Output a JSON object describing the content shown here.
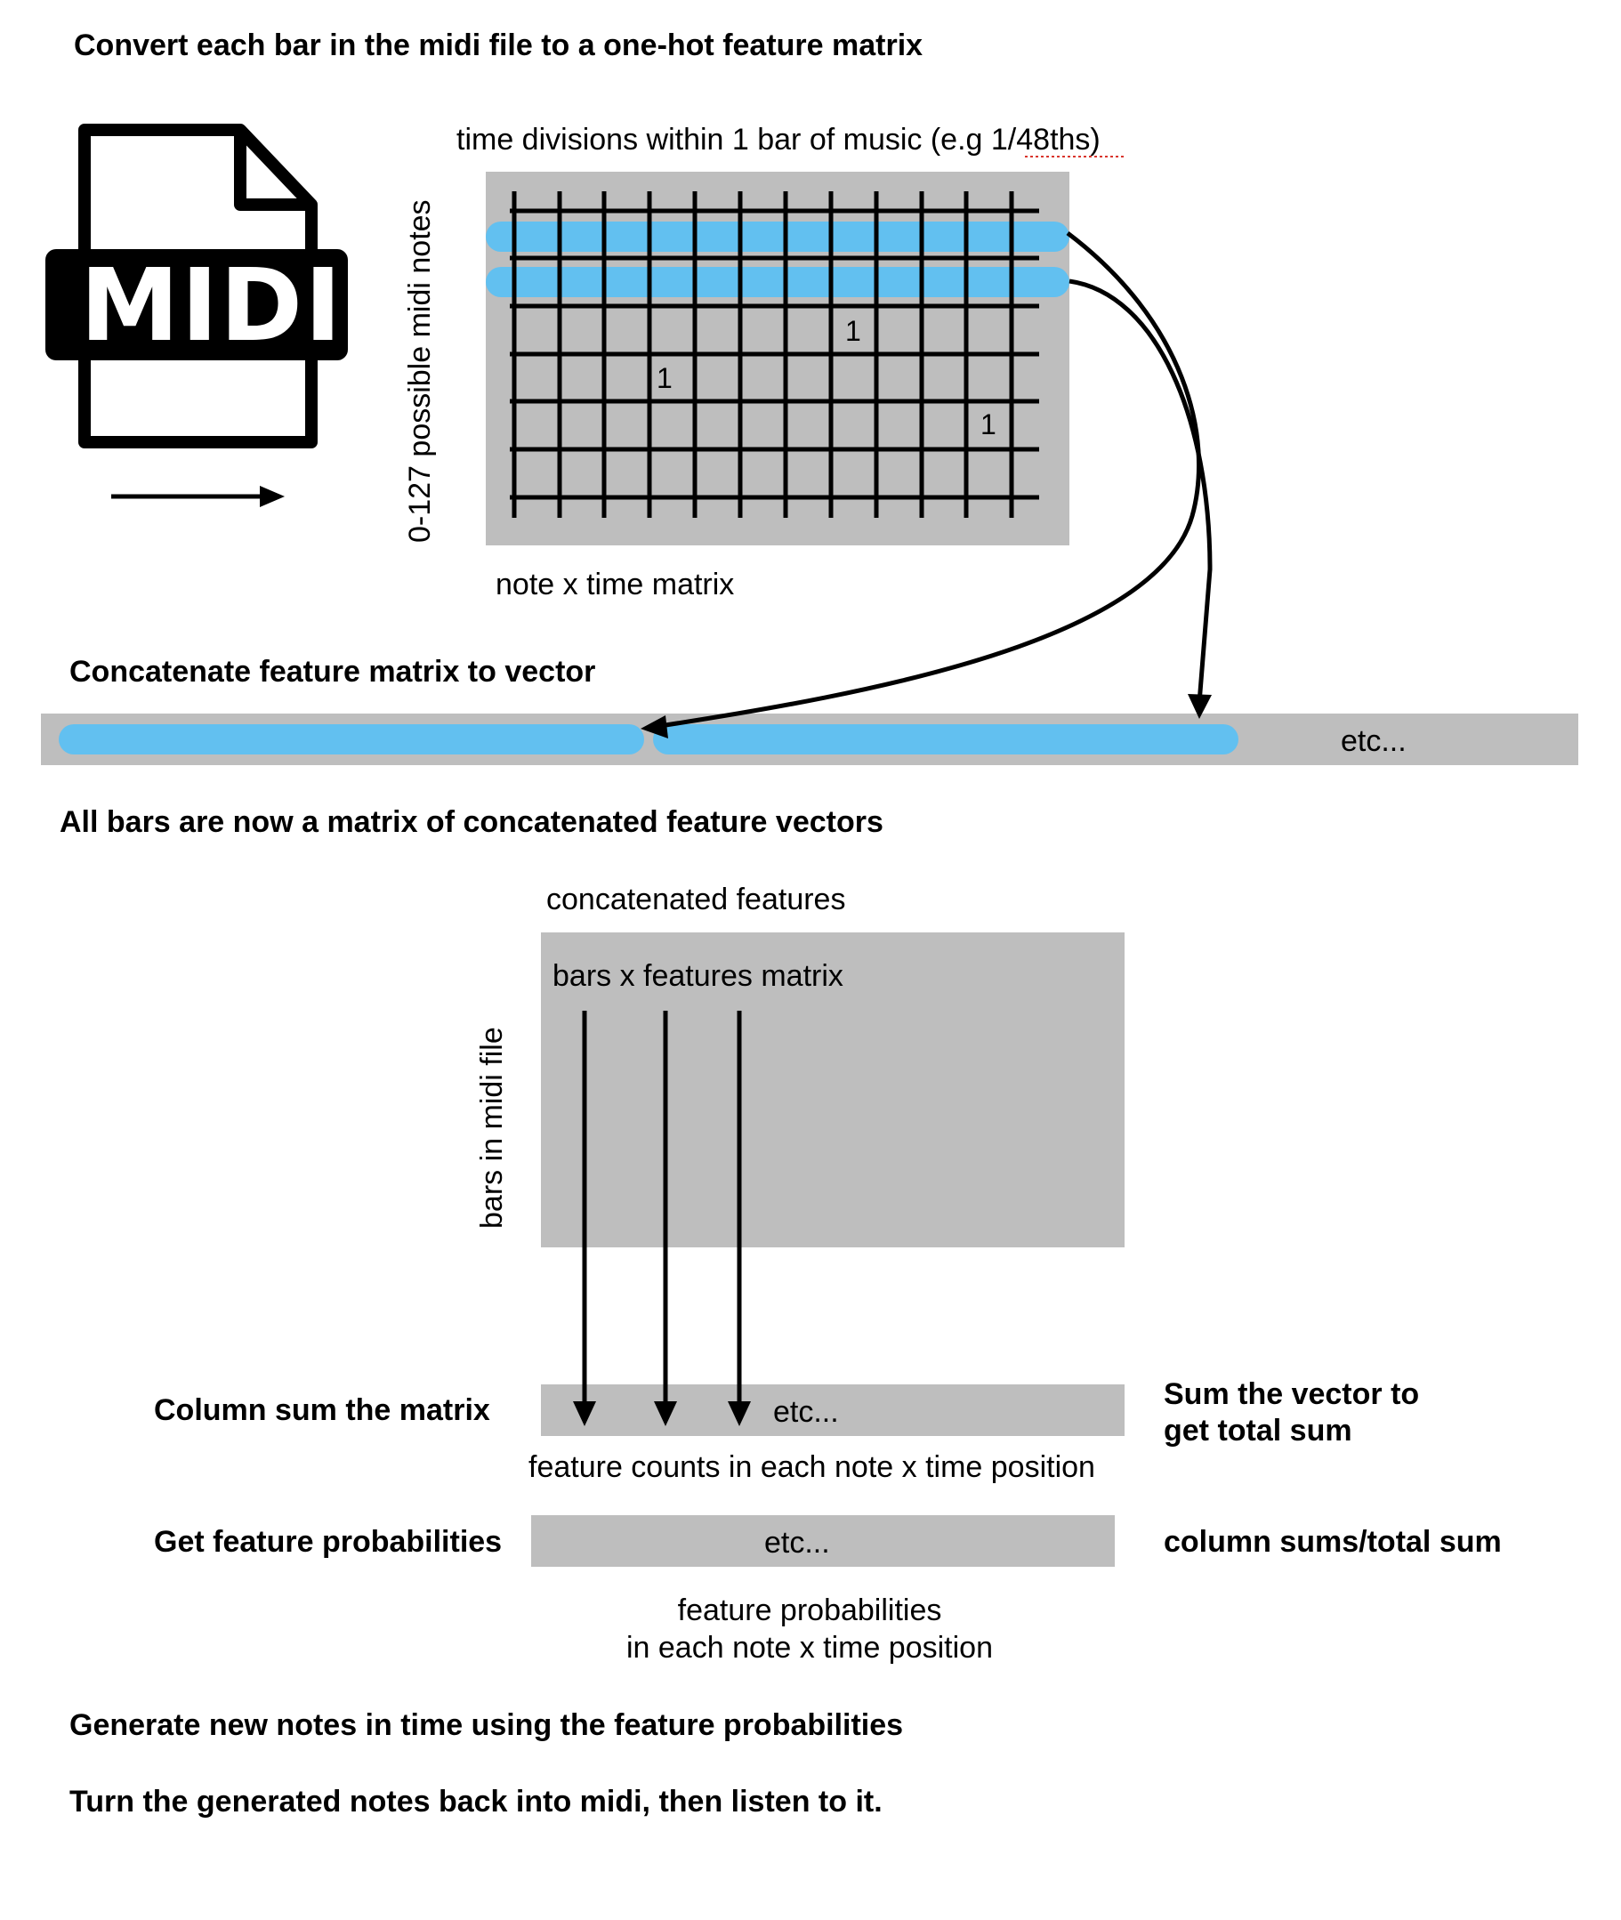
{
  "headings": {
    "step1": "Convert each bar in the midi file to a one-hot feature matrix",
    "step2": "Concatenate feature matrix to vector",
    "step3": "All bars are now a matrix of concatenated feature vectors",
    "step4": "Generate new notes in time using the feature probabilities",
    "step5": "Turn the generated notes back into midi, then listen to it."
  },
  "midi_icon": {
    "label": "MIDI"
  },
  "note_matrix": {
    "top_label": "time divisions within 1 bar of music (e.g 1/48ths)",
    "side_label": "0-127 possible midi notes",
    "bottom_label": "note x time matrix",
    "cell_values": [
      "1",
      "1",
      "1"
    ]
  },
  "vector": {
    "etc_label": "etc..."
  },
  "bars_matrix": {
    "top_label": "concatenated features",
    "inner_label": "bars x features matrix",
    "side_label": "bars in midi file"
  },
  "column_sum": {
    "left_label": "Column sum the matrix",
    "etc_label": "etc...",
    "bottom_label": "feature counts in each note x time position",
    "right_label_line1": "Sum the vector to",
    "right_label_line2": "get total sum"
  },
  "probabilities": {
    "left_label": "Get feature probabilities",
    "etc_label": "etc...",
    "right_label": "column sums/total sum",
    "bottom_label_line1": "feature probabilities",
    "bottom_label_line2": "in each note x time position"
  },
  "colors": {
    "highlight": "#62c0f0",
    "panel": "#bebebe"
  }
}
